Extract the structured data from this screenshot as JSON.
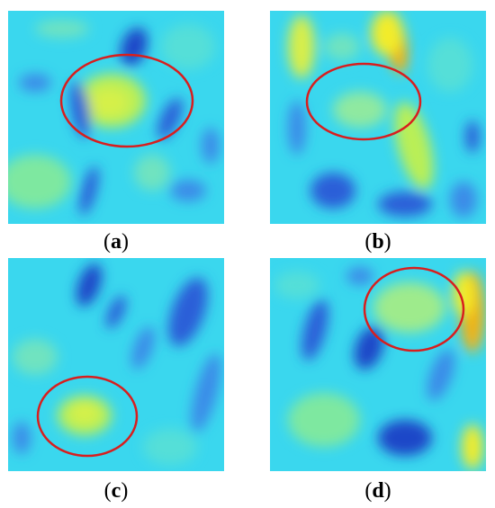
{
  "figure": {
    "panels": [
      {
        "id": "a",
        "label": "a"
      },
      {
        "id": "b",
        "label": "b"
      },
      {
        "id": "c",
        "label": "c"
      },
      {
        "id": "d",
        "label": "d"
      }
    ]
  },
  "colors": {
    "background_cyan": "#3ad7ee",
    "dark_blue": "#1f46c8",
    "mid_blue": "#3a8be8",
    "green_yellow": "#b8ee55",
    "yellow": "#f2ec2a",
    "orange": "#f0b418",
    "highlight_ellipse": "#d81e1e"
  }
}
